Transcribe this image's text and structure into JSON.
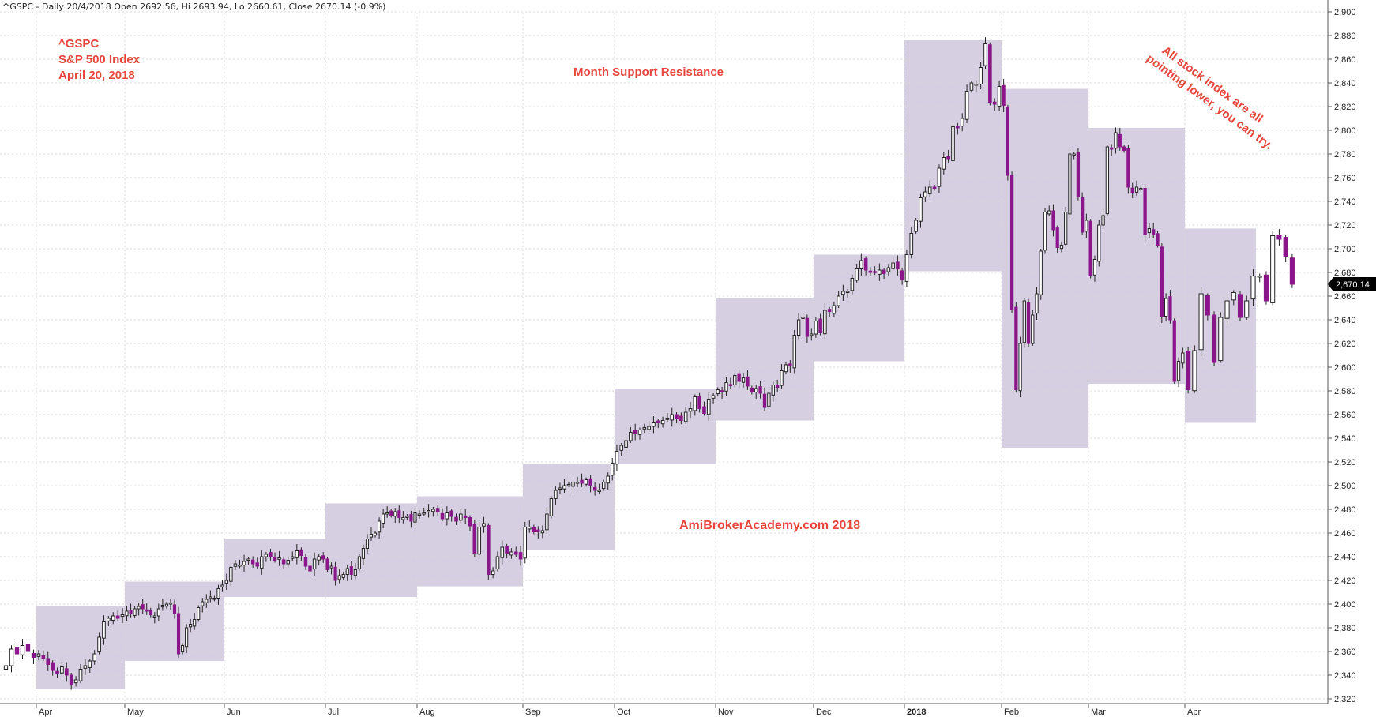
{
  "header": "^GSPC - Daily 20/4/2018 Open 2692.56, Hi 2693.94, Lo 2660.61, Close 2670.14 (-0.9%)",
  "annotations": {
    "symbol": "^GSPC",
    "name": "S&P 500 Index",
    "date": "April 20, 2018",
    "title": "Month Support Resistance",
    "watermark": "AmiBrokerAcademy.com  2018",
    "comment_line1": "All stock index are all",
    "comment_line2": "pointing lower, you can try."
  },
  "last_price_label": "2,670.14",
  "colors": {
    "up_fill": "#ffffff",
    "down_fill": "#8b168b",
    "box_fill": "#cfc5dc",
    "annotation": "#e8463c",
    "grid": "#d8d8d8"
  },
  "chart_data": {
    "type": "candlestick",
    "ylim": [
      2316,
      2910
    ],
    "y_ticks": [
      2320,
      2340,
      2360,
      2380,
      2400,
      2420,
      2440,
      2460,
      2480,
      2500,
      2520,
      2540,
      2560,
      2580,
      2600,
      2620,
      2640,
      2660,
      2680,
      2700,
      2720,
      2740,
      2760,
      2780,
      2800,
      2820,
      2840,
      2860,
      2880,
      2900
    ],
    "y_tick_labels": [
      "2,320",
      "2,340",
      "2,360",
      "2,380",
      "2,400",
      "2,420",
      "2,440",
      "2,460",
      "2,480",
      "2,500",
      "2,520",
      "2,540",
      "2,560",
      "2,580",
      "2,600",
      "2,620",
      "2,640",
      "2,660",
      "2,680",
      "2,700",
      "2,720",
      "2,740",
      "2,760",
      "2,780",
      "2,800",
      "2,820",
      "2,840",
      "2,860",
      "2,880",
      "2,900"
    ],
    "months": [
      {
        "label": "Apr",
        "bold": false
      },
      {
        "label": "May",
        "bold": false
      },
      {
        "label": "Jun",
        "bold": false
      },
      {
        "label": "Jul",
        "bold": false
      },
      {
        "label": "Aug",
        "bold": false
      },
      {
        "label": "Sep",
        "bold": false
      },
      {
        "label": "Oct",
        "bold": false
      },
      {
        "label": "Nov",
        "bold": false
      },
      {
        "label": "Dec",
        "bold": false
      },
      {
        "label": "2018",
        "bold": true
      },
      {
        "label": "Feb",
        "bold": false
      },
      {
        "label": "Mar",
        "bold": false
      },
      {
        "label": "Apr",
        "bold": false
      }
    ],
    "monthly_ranges": [
      {
        "month": "Apr 2017",
        "high": 2398,
        "low": 2328
      },
      {
        "month": "May 2017",
        "high": 2419,
        "low": 2352
      },
      {
        "month": "Jun 2017",
        "high": 2455,
        "low": 2406
      },
      {
        "month": "Jul 2017",
        "high": 2485,
        "low": 2406
      },
      {
        "month": "Aug 2017",
        "high": 2491,
        "low": 2415
      },
      {
        "month": "Sep 2017",
        "high": 2518,
        "low": 2446
      },
      {
        "month": "Oct 2017",
        "high": 2582,
        "low": 2518
      },
      {
        "month": "Nov 2017",
        "high": 2658,
        "low": 2555
      },
      {
        "month": "Dec 2017",
        "high": 2695,
        "low": 2605
      },
      {
        "month": "Jan 2018",
        "high": 2876,
        "low": 2681
      },
      {
        "month": "Feb 2018",
        "high": 2835,
        "low": 2532
      },
      {
        "month": "Mar 2018",
        "high": 2802,
        "low": 2586
      },
      {
        "month": "Apr 2018",
        "high": 2717,
        "low": 2553
      }
    ],
    "daily_closes": [
      [
        2348,
        2362,
        2358,
        2365,
        2360,
        2355
      ],
      [
        2358,
        2354,
        2349,
        2344,
        2341,
        2347,
        2340,
        2332,
        2336,
        2345,
        2348,
        2352,
        2358,
        2372,
        2385,
        2388,
        2390,
        2388,
        2391
      ],
      [
        2394,
        2392,
        2396,
        2398,
        2396,
        2394,
        2391,
        2390,
        2396,
        2399,
        2400,
        2401,
        2392,
        2358,
        2365,
        2380,
        2383,
        2387,
        2397,
        2402,
        2404,
        2406,
        2405,
        2413,
        2416
      ],
      [
        2420,
        2431,
        2434,
        2433,
        2436,
        2438,
        2434,
        2432,
        2440,
        2442,
        2440,
        2437,
        2439,
        2434,
        2437,
        2440,
        2445,
        2441,
        2432,
        2428,
        2438,
        2440,
        2438
      ],
      [
        2429,
        2432,
        2420,
        2424,
        2425,
        2430,
        2425,
        2429,
        2440,
        2447,
        2455,
        2459,
        2460,
        2470,
        2476,
        2477,
        2475,
        2478,
        2473,
        2473,
        2474,
        2470,
        2477
      ],
      [
        2476,
        2477,
        2479,
        2480,
        2478,
        2472,
        2477,
        2474,
        2470,
        2476,
        2473,
        2466,
        2443,
        2465,
        2468,
        2425,
        2428,
        2440,
        2448,
        2443,
        2444,
        2442,
        2438
      ],
      [
        2465,
        2465,
        2461,
        2461,
        2462,
        2476,
        2489,
        2496,
        2498,
        2500,
        2501,
        2503,
        2503,
        2502,
        2505,
        2500,
        2496,
        2496,
        2503,
        2508,
        2519
      ],
      [
        2529,
        2534,
        2538,
        2545,
        2544,
        2547,
        2549,
        2550,
        2553,
        2553,
        2555,
        2557,
        2560,
        2557,
        2555,
        2562,
        2565,
        2575,
        2565,
        2561,
        2573,
        2576
      ],
      [
        2581,
        2579,
        2587,
        2585,
        2593,
        2588,
        2591,
        2584,
        2579,
        2582,
        2578,
        2566,
        2578,
        2585,
        2583,
        2597,
        2602,
        2601,
        2627,
        2640,
        2642,
        2626,
        2628
      ],
      [
        2639,
        2629,
        2648,
        2647,
        2652,
        2660,
        2664,
        2664,
        2675,
        2683,
        2690,
        2682,
        2680,
        2680,
        2682,
        2679,
        2684,
        2688,
        2683,
        2674
      ],
      [
        2695,
        2713,
        2724,
        2743,
        2748,
        2752,
        2751,
        2768,
        2777,
        2776,
        2803,
        2802,
        2810,
        2833,
        2840,
        2839,
        2853,
        2873,
        2823,
        2822,
        2837
      ],
      [
        2821,
        2762,
        2649,
        2581,
        2620,
        2656,
        2620,
        2644,
        2662,
        2698,
        2731,
        2732,
        2716,
        2701,
        2703,
        2731,
        2780,
        2780,
        2744,
        2714,
        2724
      ],
      [
        2677,
        2691,
        2720,
        2728,
        2786,
        2784,
        2798,
        2786,
        2783,
        2752,
        2747,
        2752,
        2751,
        2712,
        2717,
        2712,
        2703,
        2643,
        2658,
        2640,
        2588,
        2605,
        2612
      ],
      [
        2581,
        2614,
        2662,
        2644,
        2604,
        2642,
        2656,
        2663,
        2642,
        2656,
        2677,
        2677,
        2656,
        2711,
        2708,
        2693,
        2670
      ]
    ]
  }
}
